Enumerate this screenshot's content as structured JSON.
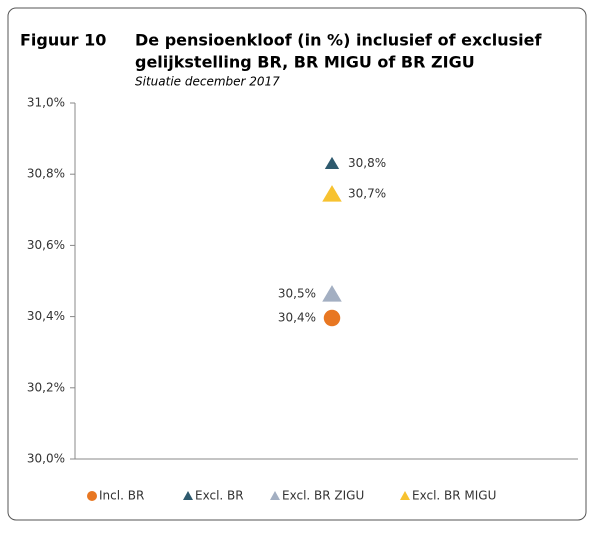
{
  "chart_data": {
    "type": "scatter",
    "figure_label": "Figuur 10",
    "title": [
      "De pensioenkloof (in %) inclusief of exclusief",
      "gelijkstelling BR, BR MIGU of BR ZIGU"
    ],
    "subtitle": "Situatie december 2017",
    "ylim": [
      30.0,
      31.0
    ],
    "yticks": [
      {
        "value": 30.0,
        "label": "30,0%"
      },
      {
        "value": 30.2,
        "label": "30,2%"
      },
      {
        "value": 30.4,
        "label": "30,4%"
      },
      {
        "value": 30.6,
        "label": "30,6%"
      },
      {
        "value": 30.8,
        "label": "30,8%"
      },
      {
        "value": 31.0,
        "label": "31,0%"
      }
    ],
    "grid": false,
    "legend": "bottom",
    "series": [
      {
        "name": "Incl. BR",
        "color": "#e87722",
        "marker": "circle",
        "values": [
          30.396
        ],
        "value_labels": [
          "30,4%"
        ]
      },
      {
        "name": "Excl. BR",
        "color": "#2e5a6e",
        "marker": "triangle",
        "values": [
          30.83
        ],
        "value_labels": [
          "30,8%"
        ]
      },
      {
        "name": "Excl. BR ZIGU",
        "color": "#a3afc2",
        "marker": "triangle",
        "values": [
          30.463
        ],
        "value_labels": [
          "30,5%"
        ]
      },
      {
        "name": "Excl. BR MIGU",
        "color": "#f7c230",
        "marker": "triangle",
        "values": [
          30.744
        ],
        "value_labels": [
          "30,7%"
        ]
      }
    ]
  }
}
